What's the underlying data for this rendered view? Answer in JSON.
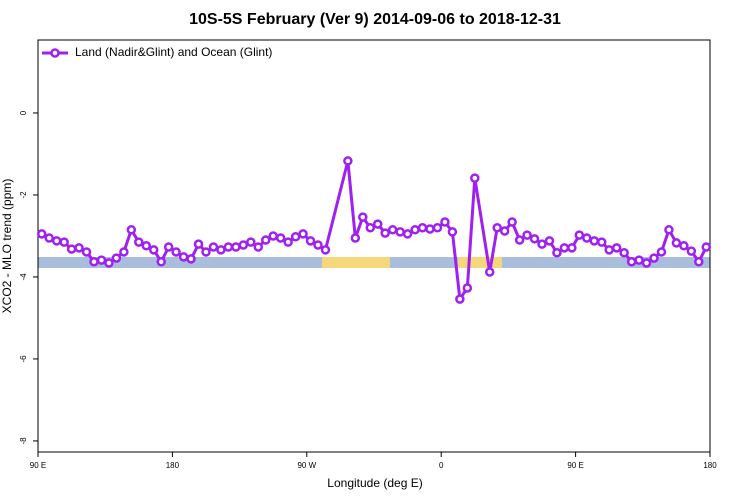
{
  "chart_data": {
    "type": "line",
    "title": "10S-5S February (Ver 9)   2014-09-06 to 2018-12-31",
    "xlabel": "Longitude (deg E)",
    "ylabel": "XCO2 - MLO trend (ppm)",
    "x": [
      92.5,
      97.5,
      102.5,
      107.5,
      112.5,
      117.5,
      122.5,
      127.5,
      132.5,
      137.5,
      142.5,
      147.5,
      152.5,
      157.5,
      162.5,
      167.5,
      172.5,
      177.5,
      182.5,
      187.5,
      192.5,
      197.5,
      202.5,
      207.5,
      212.5,
      217.5,
      222.5,
      227.5,
      232.5,
      237.5,
      242.5,
      247.5,
      252.5,
      257.5,
      262.5,
      267.5,
      272.5,
      277.5,
      282.5,
      297.5,
      302.5,
      307.5,
      312.5,
      317.5,
      322.5,
      327.5,
      332.5,
      337.5,
      342.5,
      347.5,
      352.5,
      357.5,
      362.5,
      367.5,
      372.5,
      377.5,
      382.5,
      392.5,
      397.5,
      402.5,
      407.5,
      412.5,
      417.5,
      422.5,
      427.5,
      432.5,
      437.5,
      442.5,
      447.5,
      452.5,
      457.5,
      462.5,
      467.5,
      472.5,
      477.5,
      482.5,
      487.5,
      492.5,
      497.5,
      502.5,
      507.5,
      512.5,
      517.5,
      522.5,
      527.5,
      532.5,
      537.5
    ],
    "series": [
      {
        "name": "Land (Nadir&Glint) and Ocean (Glint)",
        "color": "#a020f0",
        "values": [
          -2.95,
          -3.05,
          -3.12,
          -3.15,
          -3.32,
          -3.29,
          -3.39,
          -3.63,
          -3.59,
          -3.66,
          -3.54,
          -3.39,
          -2.85,
          -3.15,
          -3.24,
          -3.34,
          -3.63,
          -3.27,
          -3.39,
          -3.51,
          -3.56,
          -3.2,
          -3.39,
          -3.27,
          -3.34,
          -3.27,
          -3.27,
          -3.22,
          -3.15,
          -3.27,
          -3.1,
          -3.0,
          -3.05,
          -3.15,
          -3.02,
          -2.95,
          -3.12,
          -3.22,
          -3.34,
          -1.17,
          -3.05,
          -2.54,
          -2.8,
          -2.71,
          -2.93,
          -2.85,
          -2.9,
          -2.95,
          -2.85,
          -2.8,
          -2.83,
          -2.8,
          -2.66,
          -2.9,
          -4.54,
          -4.27,
          -1.59,
          -3.88,
          -2.8,
          -2.88,
          -2.66,
          -3.1,
          -2.98,
          -3.07,
          -3.2,
          -3.12,
          -3.41,
          -3.29,
          -3.29,
          -2.98,
          -3.05,
          -3.12,
          -3.15,
          -3.34,
          -3.29,
          -3.41,
          -3.63,
          -3.59,
          -3.66,
          -3.54,
          -3.39,
          -2.85,
          -3.17,
          -3.24,
          -3.37,
          -3.63,
          -3.27
        ]
      }
    ],
    "xlim": [
      90,
      540
    ],
    "xticks": [
      {
        "value": 90,
        "label": "90 E"
      },
      180,
      {
        "value": 270,
        "label": "90 W"
      },
      {
        "value": 360,
        "label": "0"
      },
      {
        "value": 450,
        "label": "90 E"
      },
      {
        "value": 540,
        "label": "180"
      }
    ],
    "ylim": [
      -8.27,
      1.78
    ],
    "yticks": [
      -8,
      -6,
      -4,
      -2,
      0
    ],
    "legend": "top-left"
  }
}
